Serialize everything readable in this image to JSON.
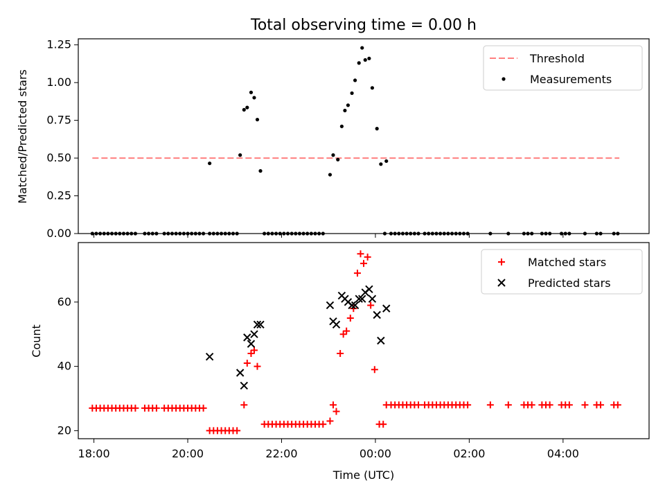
{
  "chart_data": [
    {
      "type": "scatter",
      "title": "Total observing time = 0.00 h",
      "xlabel": "",
      "ylabel": "Matched/Predicted stars",
      "ylim": [
        0,
        1.29
      ],
      "yticks": [
        "0.00",
        "0.25",
        "0.50",
        "0.75",
        "1.00",
        "1.25"
      ],
      "ytick_values": [
        0,
        0.25,
        0.5,
        0.75,
        1.0,
        1.25
      ],
      "legend_placement": "top-right",
      "series": [
        {
          "name": "Threshold",
          "style": "dashed-line",
          "color": "#ff7f7f",
          "points": [
            [
              "17:58",
              0.5
            ],
            [
              "05:12",
              0.5
            ]
          ]
        },
        {
          "name": "Measurements",
          "style": "dot",
          "color": "#000000",
          "points": [
            [
              "17:58",
              0
            ],
            [
              "18:03",
              0
            ],
            [
              "18:08",
              0
            ],
            [
              "18:13",
              0
            ],
            [
              "18:18",
              0
            ],
            [
              "18:23",
              0
            ],
            [
              "18:28",
              0
            ],
            [
              "18:33",
              0
            ],
            [
              "18:38",
              0
            ],
            [
              "18:43",
              0
            ],
            [
              "18:48",
              0
            ],
            [
              "18:53",
              0
            ],
            [
              "19:05",
              0
            ],
            [
              "19:10",
              0
            ],
            [
              "19:15",
              0
            ],
            [
              "19:20",
              0
            ],
            [
              "19:30",
              0
            ],
            [
              "19:35",
              0
            ],
            [
              "19:40",
              0
            ],
            [
              "19:45",
              0
            ],
            [
              "19:50",
              0
            ],
            [
              "19:55",
              0
            ],
            [
              "20:00",
              0
            ],
            [
              "20:05",
              0
            ],
            [
              "20:10",
              0
            ],
            [
              "20:15",
              0
            ],
            [
              "20:20",
              0
            ],
            [
              "20:28",
              0
            ],
            [
              "20:33",
              0
            ],
            [
              "20:38",
              0
            ],
            [
              "20:43",
              0
            ],
            [
              "20:48",
              0
            ],
            [
              "20:53",
              0
            ],
            [
              "20:58",
              0
            ],
            [
              "21:03",
              0
            ],
            [
              "20:28",
              0.465
            ],
            [
              "21:07",
              0.52
            ],
            [
              "21:12",
              0.82
            ],
            [
              "21:16",
              0.835
            ],
            [
              "21:21",
              0.935
            ],
            [
              "21:25",
              0.9
            ],
            [
              "21:29",
              0.755
            ],
            [
              "21:33",
              0.415
            ],
            [
              "21:38",
              0
            ],
            [
              "21:43",
              0
            ],
            [
              "21:48",
              0
            ],
            [
              "21:53",
              0
            ],
            [
              "21:58",
              0
            ],
            [
              "22:03",
              0
            ],
            [
              "22:08",
              0
            ],
            [
              "22:13",
              0
            ],
            [
              "22:18",
              0
            ],
            [
              "22:23",
              0
            ],
            [
              "22:28",
              0
            ],
            [
              "22:33",
              0
            ],
            [
              "22:38",
              0
            ],
            [
              "22:43",
              0
            ],
            [
              "22:48",
              0
            ],
            [
              "22:53",
              0
            ],
            [
              "23:02",
              0.39
            ],
            [
              "23:06",
              0.52
            ],
            [
              "23:12",
              0.49
            ],
            [
              "23:17",
              0.71
            ],
            [
              "23:21",
              0.815
            ],
            [
              "23:25",
              0.85
            ],
            [
              "23:30",
              0.93
            ],
            [
              "23:34",
              1.015
            ],
            [
              "23:39",
              1.13
            ],
            [
              "23:43",
              1.23
            ],
            [
              "23:47",
              1.15
            ],
            [
              "23:52",
              1.16
            ],
            [
              "23:56",
              0.965
            ],
            [
              "00:02",
              0.695
            ],
            [
              "00:07",
              0.46
            ],
            [
              "00:14",
              0.48
            ],
            [
              "00:12",
              0
            ],
            [
              "00:20",
              0
            ],
            [
              "00:25",
              0
            ],
            [
              "00:30",
              0
            ],
            [
              "00:35",
              0
            ],
            [
              "00:40",
              0
            ],
            [
              "00:45",
              0
            ],
            [
              "00:50",
              0
            ],
            [
              "00:55",
              0
            ],
            [
              "01:03",
              0
            ],
            [
              "01:08",
              0
            ],
            [
              "01:13",
              0
            ],
            [
              "01:18",
              0
            ],
            [
              "01:23",
              0
            ],
            [
              "01:28",
              0
            ],
            [
              "01:33",
              0
            ],
            [
              "01:38",
              0
            ],
            [
              "01:43",
              0
            ],
            [
              "01:48",
              0
            ],
            [
              "01:53",
              0
            ],
            [
              "01:58",
              0
            ],
            [
              "02:27",
              0
            ],
            [
              "02:50",
              0
            ],
            [
              "03:10",
              0
            ],
            [
              "03:15",
              0
            ],
            [
              "03:20",
              0
            ],
            [
              "03:33",
              0
            ],
            [
              "03:38",
              0
            ],
            [
              "03:43",
              0
            ],
            [
              "03:58",
              0
            ],
            [
              "04:03",
              0
            ],
            [
              "04:08",
              0
            ],
            [
              "04:28",
              0
            ],
            [
              "04:43",
              0
            ],
            [
              "04:48",
              0
            ],
            [
              "05:05",
              0
            ],
            [
              "05:10",
              0
            ]
          ]
        }
      ]
    },
    {
      "type": "scatter",
      "title": "",
      "xlabel": "Time (UTC)",
      "ylabel": "Count",
      "ylim": [
        17.5,
        78.5
      ],
      "yticks": [
        "20",
        "40",
        "60"
      ],
      "ytick_values": [
        20,
        40,
        60
      ],
      "xticks": [
        "18:00",
        "20:00",
        "22:00",
        "00:00",
        "02:00",
        "04:00"
      ],
      "xlim": [
        "17:40",
        "05:50"
      ],
      "legend_placement": "top-right",
      "series": [
        {
          "name": "Matched stars",
          "style": "plus",
          "color": "#ff0000",
          "points": [
            [
              "17:58",
              27
            ],
            [
              "18:03",
              27
            ],
            [
              "18:08",
              27
            ],
            [
              "18:13",
              27
            ],
            [
              "18:18",
              27
            ],
            [
              "18:23",
              27
            ],
            [
              "18:28",
              27
            ],
            [
              "18:33",
              27
            ],
            [
              "18:38",
              27
            ],
            [
              "18:43",
              27
            ],
            [
              "18:48",
              27
            ],
            [
              "18:53",
              27
            ],
            [
              "19:05",
              27
            ],
            [
              "19:10",
              27
            ],
            [
              "19:15",
              27
            ],
            [
              "19:20",
              27
            ],
            [
              "19:30",
              27
            ],
            [
              "19:35",
              27
            ],
            [
              "19:40",
              27
            ],
            [
              "19:45",
              27
            ],
            [
              "19:50",
              27
            ],
            [
              "19:55",
              27
            ],
            [
              "20:00",
              27
            ],
            [
              "20:05",
              27
            ],
            [
              "20:10",
              27
            ],
            [
              "20:15",
              27
            ],
            [
              "20:20",
              27
            ],
            [
              "20:28",
              20
            ],
            [
              "20:33",
              20
            ],
            [
              "20:38",
              20
            ],
            [
              "20:43",
              20
            ],
            [
              "20:48",
              20
            ],
            [
              "20:53",
              20
            ],
            [
              "20:58",
              20
            ],
            [
              "21:03",
              20
            ],
            [
              "21:12",
              28
            ],
            [
              "21:16",
              41
            ],
            [
              "21:21",
              44
            ],
            [
              "21:25",
              45
            ],
            [
              "21:29",
              40
            ],
            [
              "21:38",
              22
            ],
            [
              "21:43",
              22
            ],
            [
              "21:48",
              22
            ],
            [
              "21:53",
              22
            ],
            [
              "21:58",
              22
            ],
            [
              "22:03",
              22
            ],
            [
              "22:08",
              22
            ],
            [
              "22:13",
              22
            ],
            [
              "22:18",
              22
            ],
            [
              "22:23",
              22
            ],
            [
              "22:28",
              22
            ],
            [
              "22:33",
              22
            ],
            [
              "22:38",
              22
            ],
            [
              "22:43",
              22
            ],
            [
              "22:48",
              22
            ],
            [
              "22:53",
              22
            ],
            [
              "23:02",
              23
            ],
            [
              "23:06",
              28
            ],
            [
              "23:10",
              26
            ],
            [
              "23:15",
              44
            ],
            [
              "23:19",
              50
            ],
            [
              "23:23",
              51
            ],
            [
              "23:28",
              55
            ],
            [
              "23:32",
              58
            ],
            [
              "23:37",
              69
            ],
            [
              "23:41",
              75
            ],
            [
              "23:45",
              72
            ],
            [
              "23:50",
              74
            ],
            [
              "23:54",
              59
            ],
            [
              "23:59",
              39
            ],
            [
              "00:05",
              22
            ],
            [
              "00:10",
              22
            ],
            [
              "00:14",
              28
            ],
            [
              "00:20",
              28
            ],
            [
              "00:25",
              28
            ],
            [
              "00:30",
              28
            ],
            [
              "00:35",
              28
            ],
            [
              "00:40",
              28
            ],
            [
              "00:45",
              28
            ],
            [
              "00:50",
              28
            ],
            [
              "00:55",
              28
            ],
            [
              "01:03",
              28
            ],
            [
              "01:08",
              28
            ],
            [
              "01:13",
              28
            ],
            [
              "01:18",
              28
            ],
            [
              "01:23",
              28
            ],
            [
              "01:28",
              28
            ],
            [
              "01:33",
              28
            ],
            [
              "01:38",
              28
            ],
            [
              "01:43",
              28
            ],
            [
              "01:48",
              28
            ],
            [
              "01:53",
              28
            ],
            [
              "01:58",
              28
            ],
            [
              "02:27",
              28
            ],
            [
              "02:50",
              28
            ],
            [
              "03:10",
              28
            ],
            [
              "03:15",
              28
            ],
            [
              "03:20",
              28
            ],
            [
              "03:33",
              28
            ],
            [
              "03:38",
              28
            ],
            [
              "03:43",
              28
            ],
            [
              "03:58",
              28
            ],
            [
              "04:03",
              28
            ],
            [
              "04:08",
              28
            ],
            [
              "04:28",
              28
            ],
            [
              "04:43",
              28
            ],
            [
              "04:48",
              28
            ],
            [
              "05:05",
              28
            ],
            [
              "05:10",
              28
            ]
          ]
        },
        {
          "name": "Predicted stars",
          "style": "cross",
          "color": "#000000",
          "points": [
            [
              "20:28",
              43
            ],
            [
              "21:07",
              38
            ],
            [
              "21:12",
              34
            ],
            [
              "21:16",
              49
            ],
            [
              "21:21",
              47
            ],
            [
              "21:25",
              50
            ],
            [
              "21:29",
              53
            ],
            [
              "21:33",
              53
            ],
            [
              "23:02",
              59
            ],
            [
              "23:06",
              54
            ],
            [
              "23:10",
              53
            ],
            [
              "23:17",
              62
            ],
            [
              "23:21",
              61
            ],
            [
              "23:25",
              60
            ],
            [
              "23:30",
              59
            ],
            [
              "23:34",
              59
            ],
            [
              "23:39",
              61
            ],
            [
              "23:43",
              61
            ],
            [
              "23:47",
              63
            ],
            [
              "23:52",
              64
            ],
            [
              "23:56",
              61
            ],
            [
              "00:02",
              56
            ],
            [
              "00:07",
              48
            ],
            [
              "00:14",
              58
            ]
          ]
        }
      ]
    }
  ]
}
